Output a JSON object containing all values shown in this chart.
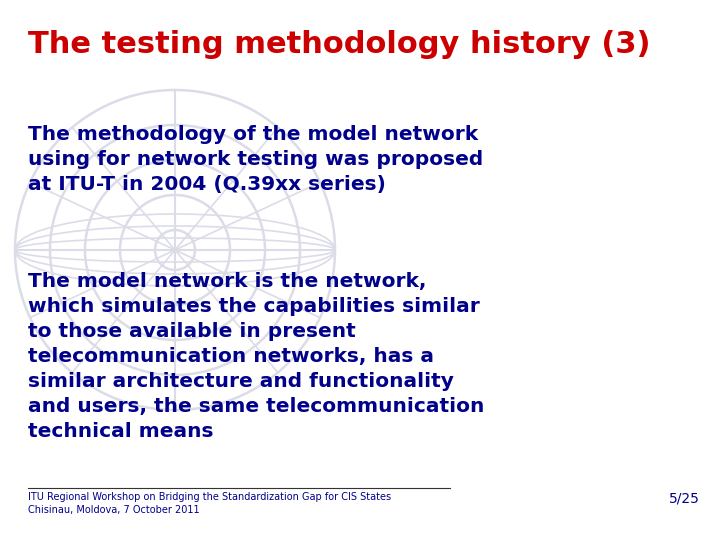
{
  "title": "The testing methodology history (3)",
  "title_color": "#CC0000",
  "title_fontsize": 22,
  "body_color": "#00008B",
  "background_color": "#FFFFFF",
  "para1": "The methodology of the model network\nusing for network testing was proposed\nat ITU-T in 2004 (Q.39xx series)",
  "para2": "The model network is the network,\nwhich simulates the capabilities similar\nto those available in present\ntelecommunication networks, has a\nsimilar architecture and functionality\nand users, the same telecommunication\ntechnical means",
  "footer_line1": "ITU Regional Workshop on Bridging the Standardization Gap for CIS States",
  "footer_line2": "Chisinau, Moldova, 7 October 2011",
  "page_number": "5/25",
  "body_fontsize": 14.5,
  "footer_fontsize": 7,
  "page_num_fontsize": 10,
  "watermark_color": "#DCDCE8"
}
